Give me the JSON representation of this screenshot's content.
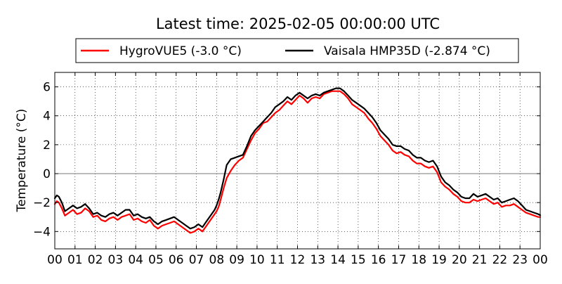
{
  "chart_data": {
    "type": "line",
    "title": "Latest time: 2025-02-05 00:00:00 UTC",
    "xlabel": "",
    "ylabel": "Temperature (°C)",
    "xlim": [
      0,
      24
    ],
    "ylim": [
      -5.2,
      7
    ],
    "x_ticks": [
      0,
      1,
      2,
      3,
      4,
      5,
      6,
      7,
      8,
      9,
      10,
      11,
      12,
      13,
      14,
      15,
      16,
      17,
      18,
      19,
      20,
      21,
      22,
      23,
      24
    ],
    "x_tick_labels": [
      "00",
      "01",
      "02",
      "03",
      "04",
      "05",
      "06",
      "07",
      "08",
      "09",
      "10",
      "11",
      "12",
      "13",
      "14",
      "15",
      "16",
      "17",
      "18",
      "19",
      "20",
      "21",
      "22",
      "23",
      "00"
    ],
    "y_ticks": [
      -4,
      -2,
      0,
      2,
      4,
      6
    ],
    "y_tick_labels": [
      "−4",
      "−2",
      "0",
      "2",
      "4",
      "6"
    ],
    "grid": true,
    "zero_line": true,
    "legend_position": "top-center",
    "series": [
      {
        "name": "HygroVUE5 (-3.0 °C)",
        "color": "#ff0000",
        "x": [
          0,
          0.1,
          0.2,
          0.35,
          0.5,
          0.7,
          0.9,
          1.1,
          1.3,
          1.5,
          1.7,
          1.9,
          2.1,
          2.3,
          2.5,
          2.7,
          2.9,
          3.1,
          3.3,
          3.5,
          3.7,
          3.9,
          4.1,
          4.3,
          4.5,
          4.7,
          4.9,
          5.1,
          5.3,
          5.5,
          5.7,
          5.9,
          6.1,
          6.3,
          6.5,
          6.7,
          6.9,
          7.1,
          7.3,
          7.5,
          7.7,
          7.9,
          8.0,
          8.1,
          8.2,
          8.35,
          8.5,
          8.7,
          8.9,
          9.1,
          9.3,
          9.5,
          9.7,
          9.9,
          10.1,
          10.3,
          10.5,
          10.7,
          10.9,
          11.1,
          11.3,
          11.5,
          11.7,
          11.9,
          12.1,
          12.3,
          12.5,
          12.7,
          12.9,
          13.1,
          13.3,
          13.5,
          13.7,
          13.9,
          14.1,
          14.3,
          14.5,
          14.7,
          14.9,
          15.1,
          15.3,
          15.5,
          15.7,
          15.9,
          16.1,
          16.3,
          16.5,
          16.7,
          16.9,
          17.1,
          17.3,
          17.5,
          17.7,
          17.9,
          18.1,
          18.3,
          18.5,
          18.7,
          18.9,
          19.1,
          19.3,
          19.5,
          19.7,
          19.9,
          20.1,
          20.3,
          20.5,
          20.7,
          20.9,
          21.1,
          21.3,
          21.5,
          21.7,
          21.9,
          22.1,
          22.3,
          22.5,
          22.7,
          22.9,
          23.1,
          23.3,
          23.5,
          23.7,
          23.9,
          24.0
        ],
        "values": [
          -2.1,
          -1.9,
          -2.0,
          -2.4,
          -2.9,
          -2.7,
          -2.5,
          -2.8,
          -2.7,
          -2.4,
          -2.6,
          -3.0,
          -2.9,
          -3.2,
          -3.3,
          -3.1,
          -3.0,
          -3.2,
          -3.0,
          -2.9,
          -2.8,
          -3.2,
          -3.1,
          -3.3,
          -3.4,
          -3.2,
          -3.6,
          -3.8,
          -3.6,
          -3.5,
          -3.4,
          -3.3,
          -3.5,
          -3.7,
          -3.9,
          -4.1,
          -4.0,
          -3.8,
          -4.0,
          -3.6,
          -3.2,
          -2.8,
          -2.6,
          -2.3,
          -1.8,
          -1.0,
          -0.3,
          0.2,
          0.6,
          0.9,
          1.1,
          1.7,
          2.3,
          2.8,
          3.1,
          3.5,
          3.6,
          3.9,
          4.2,
          4.4,
          4.7,
          5.0,
          4.8,
          5.1,
          5.4,
          5.2,
          4.9,
          5.2,
          5.3,
          5.2,
          5.5,
          5.6,
          5.7,
          5.7,
          5.7,
          5.5,
          5.2,
          4.8,
          4.6,
          4.4,
          4.2,
          3.8,
          3.5,
          3.1,
          2.6,
          2.3,
          2.0,
          1.6,
          1.4,
          1.5,
          1.3,
          1.2,
          0.9,
          0.7,
          0.7,
          0.5,
          0.4,
          0.5,
          0.1,
          -0.6,
          -0.9,
          -1.1,
          -1.4,
          -1.6,
          -1.9,
          -2.0,
          -2.0,
          -1.8,
          -1.9,
          -1.8,
          -1.7,
          -1.9,
          -2.1,
          -2.0,
          -2.3,
          -2.2,
          -2.2,
          -2.1,
          -2.3,
          -2.5,
          -2.7,
          -2.8,
          -2.9,
          -3.0,
          -3.0
        ]
      },
      {
        "name": "Vaisala HMP35D (-2.874 °C)",
        "color": "#000000",
        "x": [
          0,
          0.1,
          0.2,
          0.35,
          0.5,
          0.7,
          0.9,
          1.1,
          1.3,
          1.5,
          1.7,
          1.9,
          2.1,
          2.3,
          2.5,
          2.7,
          2.9,
          3.1,
          3.3,
          3.5,
          3.7,
          3.9,
          4.1,
          4.3,
          4.5,
          4.7,
          4.9,
          5.1,
          5.3,
          5.5,
          5.7,
          5.9,
          6.1,
          6.3,
          6.5,
          6.7,
          6.9,
          7.1,
          7.3,
          7.5,
          7.7,
          7.9,
          8.0,
          8.1,
          8.2,
          8.35,
          8.5,
          8.7,
          8.9,
          9.1,
          9.3,
          9.5,
          9.7,
          9.9,
          10.1,
          10.3,
          10.5,
          10.7,
          10.9,
          11.1,
          11.3,
          11.5,
          11.7,
          11.9,
          12.1,
          12.3,
          12.5,
          12.7,
          12.9,
          13.1,
          13.3,
          13.5,
          13.7,
          13.9,
          14.1,
          14.3,
          14.5,
          14.7,
          14.9,
          15.1,
          15.3,
          15.5,
          15.7,
          15.9,
          16.1,
          16.3,
          16.5,
          16.7,
          16.9,
          17.1,
          17.3,
          17.5,
          17.7,
          17.9,
          18.1,
          18.3,
          18.5,
          18.7,
          18.9,
          19.1,
          19.3,
          19.5,
          19.7,
          19.9,
          20.1,
          20.3,
          20.5,
          20.7,
          20.9,
          21.1,
          21.3,
          21.5,
          21.7,
          21.9,
          22.1,
          22.3,
          22.5,
          22.7,
          22.9,
          23.1,
          23.3,
          23.5,
          23.7,
          23.9,
          24.0
        ],
        "values": [
          -1.7,
          -1.5,
          -1.6,
          -2.0,
          -2.6,
          -2.4,
          -2.2,
          -2.4,
          -2.3,
          -2.1,
          -2.4,
          -2.8,
          -2.7,
          -2.9,
          -3.0,
          -2.8,
          -2.7,
          -2.9,
          -2.7,
          -2.5,
          -2.5,
          -2.9,
          -2.8,
          -3.0,
          -3.1,
          -3.0,
          -3.3,
          -3.5,
          -3.3,
          -3.2,
          -3.1,
          -3.0,
          -3.2,
          -3.4,
          -3.6,
          -3.8,
          -3.7,
          -3.5,
          -3.7,
          -3.3,
          -2.9,
          -2.5,
          -2.2,
          -1.8,
          -1.3,
          -0.4,
          0.6,
          1.0,
          1.1,
          1.2,
          1.3,
          1.9,
          2.6,
          3.0,
          3.3,
          3.6,
          3.9,
          4.2,
          4.6,
          4.8,
          5.0,
          5.3,
          5.1,
          5.4,
          5.6,
          5.4,
          5.2,
          5.4,
          5.5,
          5.4,
          5.6,
          5.7,
          5.8,
          5.9,
          5.9,
          5.7,
          5.4,
          5.1,
          4.9,
          4.7,
          4.5,
          4.2,
          3.9,
          3.5,
          3.0,
          2.7,
          2.4,
          2.0,
          1.9,
          1.9,
          1.7,
          1.6,
          1.3,
          1.1,
          1.1,
          0.9,
          0.8,
          0.9,
          0.5,
          -0.2,
          -0.6,
          -0.8,
          -1.1,
          -1.3,
          -1.6,
          -1.7,
          -1.7,
          -1.4,
          -1.6,
          -1.5,
          -1.4,
          -1.6,
          -1.8,
          -1.7,
          -2.0,
          -1.9,
          -1.8,
          -1.7,
          -1.9,
          -2.2,
          -2.5,
          -2.6,
          -2.7,
          -2.8,
          -2.874
        ]
      }
    ]
  }
}
